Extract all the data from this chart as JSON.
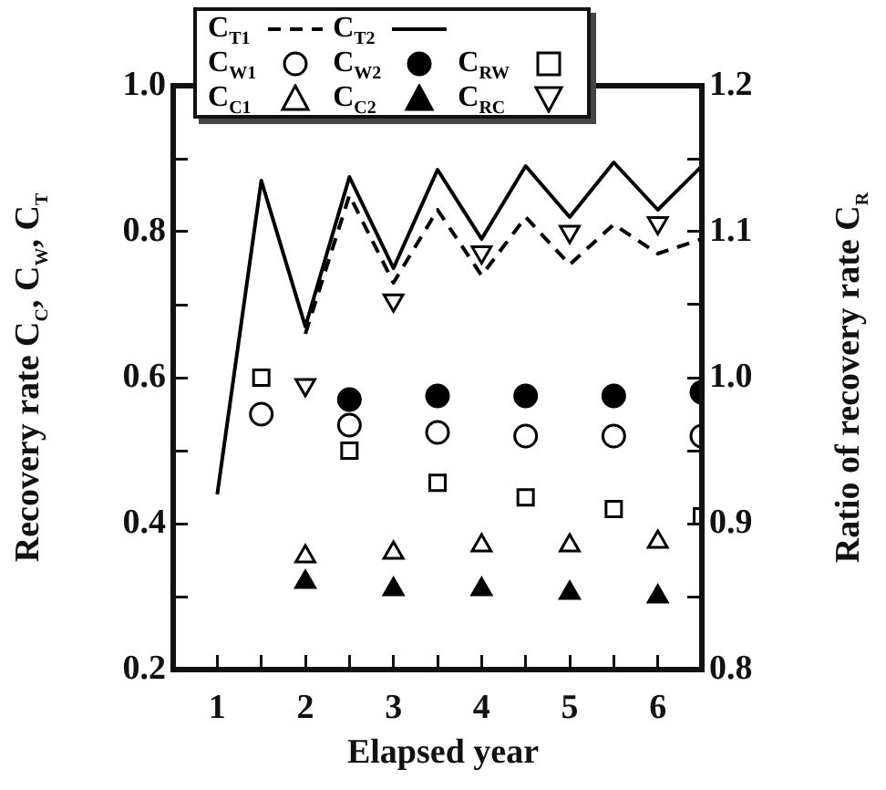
{
  "chart_data": {
    "type": "scatter",
    "xlabel": "Elapsed year",
    "ylabel": "Recovery rate C$_{C}$, C$_{W}$, C$_{T}$",
    "y2label": "Ratio of recovery rate C$_{R}$",
    "xlim": [
      0.5,
      6.5
    ],
    "xticks": [
      1,
      2,
      3,
      4,
      5,
      6,
      {
        "value": 1.5,
        "label": null
      },
      {
        "value": 2.5,
        "label": null
      },
      {
        "value": 3.5,
        "label": null
      },
      {
        "value": 4.5,
        "label": null
      },
      {
        "value": 5.5,
        "label": null
      }
    ],
    "ylim": [
      0.2,
      1.0
    ],
    "yticks": [
      0.2,
      0.4,
      0.6,
      0.8,
      {
        "value": 1.0,
        "label": "1.0"
      },
      {
        "value": 0.3,
        "label": null
      },
      {
        "value": 0.5,
        "label": null
      },
      {
        "value": 0.7,
        "label": null
      },
      {
        "value": 0.9,
        "label": null
      }
    ],
    "y2lim": [
      0.8,
      1.2
    ],
    "y2ticks": [
      {
        "value": 0.8,
        "label": "0.8"
      },
      {
        "value": 0.9,
        "label": "0.9"
      },
      {
        "value": 1.0,
        "label": "1.0"
      },
      {
        "value": 1.1,
        "label": "1.1"
      },
      {
        "value": 1.2,
        "label": "1.2"
      },
      {
        "value": 0.85,
        "label": null
      },
      {
        "value": 0.95,
        "label": null
      },
      {
        "value": 1.05,
        "label": null
      },
      {
        "value": 1.15,
        "label": null
      }
    ],
    "grid": false,
    "legend": "top left",
    "series": [
      {
        "name": "C$_{T1}$",
        "type": "line",
        "line_style": "dashed",
        "marker": "none",
        "color": "#000000",
        "x": [
          2,
          2.5,
          3,
          3.5,
          4,
          4.5,
          5,
          5.5,
          6,
          6.5
        ],
        "values": [
          0.66,
          0.85,
          0.73,
          0.83,
          0.74,
          0.82,
          0.755,
          0.81,
          0.77,
          0.79
        ]
      },
      {
        "name": "C$_{T2}$",
        "type": "line",
        "line_style": "solid",
        "marker": "none",
        "color": "#000000",
        "x": [
          1,
          1.5,
          2,
          2.5,
          3,
          3.5,
          4,
          4.5,
          5,
          5.5,
          6,
          6.5
        ],
        "values": [
          0.44,
          0.87,
          0.67,
          0.875,
          0.75,
          0.885,
          0.79,
          0.89,
          0.82,
          0.895,
          0.83,
          0.89
        ]
      },
      {
        "name": "C$_{W1}$",
        "type": "scatter",
        "marker": "circle-open",
        "color": "#000000",
        "x": [
          1.5,
          2.5,
          3.5,
          4.5,
          5.5,
          6.5
        ],
        "values": [
          0.55,
          0.535,
          0.525,
          0.52,
          0.52,
          0.52
        ]
      },
      {
        "name": "C$_{W2}$",
        "type": "scatter",
        "marker": "circle",
        "color": "#000000",
        "x": [
          2.5,
          3.5,
          4.5,
          5.5,
          6.5
        ],
        "values": [
          0.57,
          0.575,
          0.575,
          0.575,
          0.58
        ]
      },
      {
        "name": "C$_{RW}$",
        "type": "scatter",
        "marker": "square-open",
        "axis": "y2",
        "color": "#000000",
        "x": [
          1.5,
          2.5,
          3.5,
          4.5,
          5.5,
          6.5
        ],
        "values": [
          1.0,
          0.95,
          0.928,
          0.918,
          0.91,
          0.905
        ]
      },
      {
        "name": "C$_{C1}$",
        "type": "scatter",
        "marker": "triangle-open",
        "color": "#000000",
        "x": [
          2,
          3,
          4,
          5,
          6
        ],
        "values": [
          0.355,
          0.36,
          0.37,
          0.37,
          0.375
        ]
      },
      {
        "name": "C$_{C2}$",
        "type": "scatter",
        "marker": "triangle",
        "color": "#000000",
        "x": [
          2,
          3,
          4,
          5,
          6
        ],
        "values": [
          0.32,
          0.31,
          0.31,
          0.305,
          0.3
        ]
      },
      {
        "name": "C$_{RC}$",
        "type": "scatter",
        "marker": "triangle-down-open",
        "axis": "y2",
        "color": "#000000",
        "x": [
          2,
          3,
          4,
          5,
          6
        ],
        "values": [
          0.995,
          1.053,
          1.086,
          1.1,
          1.106
        ]
      }
    ]
  }
}
